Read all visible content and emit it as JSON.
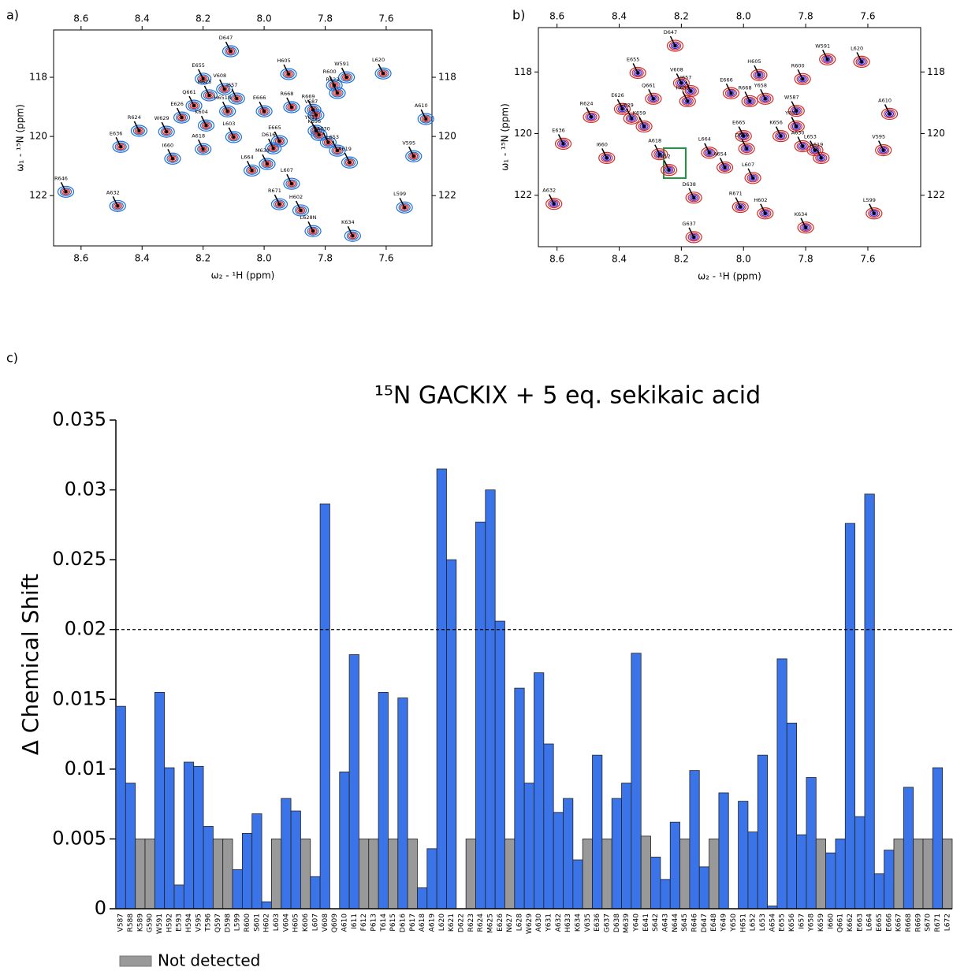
{
  "chart_data": [
    {
      "type": "scatter",
      "panel_label": "a)",
      "xlabel": "ω₂ - ¹H (ppm)",
      "ylabel": "ω₁ - ¹⁵N (ppm)",
      "xlim": [
        8.69,
        7.45
      ],
      "ylim": [
        116.4,
        123.7
      ],
      "xticks": [
        8.6,
        8.4,
        8.2,
        {
          "value": 8,
          "label": "8.0"
        },
        7.8,
        7.6
      ],
      "yticks": [
        118,
        120,
        122
      ],
      "contour_colors": [
        "#1f6fd6",
        "#d22b2b"
      ],
      "peaks": {
        "labels": [
          "D647",
          "E655",
          "H605",
          "W591",
          "L620",
          "V608",
          "M625",
          "I657",
          "Q661",
          "E626",
          "H651N",
          "R600",
          "R623",
          "E666",
          "R668",
          "R669",
          "V587",
          "W629",
          "R624",
          "E636",
          "K604",
          "L603",
          "E665",
          "Y631",
          "K656",
          "D616",
          "A630",
          "L653",
          "A619",
          "I660",
          "A618",
          "L664",
          "M639",
          "R646",
          "A632",
          "R671",
          "H602",
          "L607",
          "L628N",
          "K634",
          "L599",
          "V595",
          "A610"
        ],
        "x": [
          8.11,
          8.2,
          7.92,
          7.73,
          7.61,
          8.13,
          8.18,
          8.09,
          8.23,
          8.27,
          8.12,
          7.77,
          7.76,
          8.0,
          7.91,
          7.84,
          7.83,
          8.32,
          8.41,
          8.47,
          8.19,
          8.1,
          7.95,
          7.83,
          7.82,
          7.97,
          7.79,
          7.76,
          7.72,
          8.3,
          8.2,
          8.04,
          7.99,
          8.65,
          8.48,
          7.95,
          7.88,
          7.91,
          7.84,
          7.71,
          7.54,
          7.51,
          7.47
        ],
        "y": [
          117.12,
          118.05,
          117.89,
          118.0,
          117.87,
          118.4,
          118.61,
          118.72,
          118.96,
          119.36,
          119.15,
          118.27,
          118.53,
          119.15,
          119.01,
          119.1,
          119.28,
          119.84,
          119.81,
          120.35,
          119.63,
          120.02,
          120.16,
          119.81,
          119.95,
          120.4,
          120.2,
          120.48,
          120.88,
          120.75,
          120.43,
          121.15,
          120.93,
          121.87,
          122.35,
          122.29,
          122.5,
          121.6,
          123.2,
          123.36,
          122.4,
          120.67,
          119.41
        ],
        "label_colors": [
          "#000",
          "#000",
          "#000",
          "#000",
          "#1a9a3a",
          "#1a9a3a",
          "#1a9a3a",
          "#000",
          "#000",
          "#1a9a3a",
          "#000",
          "#000",
          "#1a9a3a",
          "#000",
          "#000",
          "#000",
          "#000",
          "#000",
          "#1a9a3a",
          "#000",
          "#000",
          "#1a9a3a",
          "#000",
          "#000",
          "#000",
          "#000",
          "#000",
          "#000",
          "#000",
          "#000",
          "#000",
          "#000",
          "#000",
          "#000",
          "#000",
          "#000",
          "#000",
          "#000",
          "#000",
          "#000",
          "#000",
          "#000",
          "#000"
        ]
      }
    },
    {
      "type": "scatter",
      "panel_label": "b)",
      "xlabel": "ω₂ - ¹H (ppm)",
      "ylabel": "ω₁ - ¹⁵N (ppm)",
      "xlim": [
        8.66,
        7.43
      ],
      "ylim": [
        116.56,
        123.67
      ],
      "xticks": [
        8.6,
        8.4,
        8.2,
        {
          "value": 8,
          "label": "8.0"
        },
        7.8,
        7.6
      ],
      "yticks": [
        118,
        120,
        122
      ],
      "contour_colors": [
        "#d22b2b",
        "#4b2bd0"
      ],
      "peaks": {
        "labels": [
          "D647",
          "E655",
          "V608",
          "I657",
          "H605",
          "W591",
          "L620",
          "R600",
          "E666",
          "Y658",
          "R668",
          "Q661",
          "E626",
          "H651",
          "R624",
          "V629",
          "K659",
          "E636",
          "I660",
          "A618",
          "F612",
          "L664",
          "E665",
          "D616",
          "K656",
          "Y631",
          "W587",
          "A630",
          "L653",
          "A619",
          "A654",
          "L607",
          "A610",
          "V595",
          "A632",
          "D638",
          "R671",
          "H602",
          "K634",
          "L599",
          "G637"
        ],
        "x": [
          8.22,
          8.34,
          8.2,
          8.17,
          7.95,
          7.73,
          7.62,
          7.81,
          8.04,
          7.93,
          7.98,
          8.29,
          8.39,
          8.18,
          8.49,
          8.36,
          8.32,
          8.58,
          8.44,
          8.27,
          8.24,
          8.11,
          8.0,
          7.99,
          7.88,
          7.83,
          7.83,
          7.81,
          7.77,
          7.75,
          8.06,
          7.97,
          7.53,
          7.55,
          8.61,
          8.16,
          8.01,
          7.93,
          7.8,
          7.58,
          8.16
        ],
        "y": [
          117.15,
          118.03,
          118.36,
          118.62,
          118.1,
          117.59,
          117.67,
          118.23,
          118.69,
          118.87,
          118.95,
          118.87,
          119.2,
          118.95,
          119.46,
          119.51,
          119.77,
          120.33,
          120.79,
          120.67,
          121.18,
          120.62,
          120.08,
          120.49,
          120.08,
          119.77,
          119.26,
          120.41,
          120.54,
          120.79,
          121.1,
          121.44,
          119.36,
          120.54,
          122.28,
          122.08,
          122.38,
          122.59,
          123.05,
          122.59,
          123.36
        ],
        "label_colors": [
          "#000",
          "#000",
          "#000",
          "#000",
          "#000",
          "#000",
          "#000",
          "#000",
          "#000",
          "#000",
          "#000",
          "#000",
          "#000",
          "#000",
          "#000",
          "#000",
          "#000",
          "#000",
          "#000",
          "#000",
          "#000",
          "#000",
          "#000",
          "#000",
          "#000",
          "#000",
          "#000",
          "#000",
          "#000",
          "#000",
          "#000",
          "#000",
          "#000",
          "#000",
          "#000",
          "#000",
          "#000",
          "#000",
          "#000",
          "#000",
          "#000"
        ]
      }
    },
    {
      "type": "bar",
      "panel_label": "c)",
      "title": "¹⁵N GACKIX + 5 eq. sekikaic acid",
      "ylabel": "Δ Chemical Shift",
      "ylim": [
        0,
        0.035
      ],
      "yticks": [
        0,
        0.005,
        0.01,
        0.015,
        0.02,
        0.025,
        0.03,
        0.035
      ],
      "threshold": 0.02,
      "categories": [
        "V587",
        "R588",
        "K589",
        "G590",
        "W591",
        "H592",
        "E593",
        "H594",
        "V595",
        "T596",
        "Q597",
        "D598",
        "L599",
        "R600",
        "S601",
        "H602",
        "L603",
        "V604",
        "H605",
        "K606",
        "L607",
        "V608",
        "Q609",
        "A610",
        "I611",
        "F612",
        "P613",
        "T614",
        "P615",
        "D616",
        "P617",
        "A618",
        "A619",
        "L620",
        "K621",
        "D622",
        "R623",
        "R624",
        "M625",
        "E626",
        "N627",
        "L628",
        "W629",
        "A630",
        "Y631",
        "A632",
        "H633",
        "K634",
        "V635",
        "E636",
        "G637",
        "D638",
        "M639",
        "Y640",
        "E641",
        "S642",
        "A643",
        "N644",
        "S645",
        "R646",
        "D647",
        "E648",
        "Y649",
        "Y650",
        "H651",
        "L652",
        "L653",
        "A654",
        "E655",
        "K656",
        "I657",
        "Y658",
        "K659",
        "I660",
        "Q661",
        "K662",
        "E663",
        "L664",
        "E665",
        "E666",
        "K667",
        "R668",
        "R669",
        "S670",
        "R671",
        "L672"
      ],
      "values": [
        0.0145,
        0.009,
        0.005,
        0.005,
        0.0155,
        0.0101,
        0.0017,
        0.0105,
        0.0102,
        0.0059,
        0.005,
        0.005,
        0.0028,
        0.0054,
        0.0068,
        0.0005,
        0.005,
        0.0079,
        0.007,
        0.005,
        0.0023,
        0.029,
        null,
        0.0098,
        0.0182,
        0.005,
        0.005,
        0.0155,
        0.005,
        0.0151,
        0.005,
        0.0015,
        0.0043,
        0.0315,
        0.025,
        null,
        0.005,
        0.0277,
        0.03,
        0.0206,
        0.005,
        0.0158,
        0.009,
        0.0169,
        0.0118,
        0.0069,
        0.0079,
        0.0035,
        0.005,
        0.011,
        0.005,
        0.0079,
        0.009,
        0.0183,
        0.0052,
        0.0037,
        0.0021,
        0.0062,
        0.005,
        0.0099,
        0.003,
        0.005,
        0.0083,
        null,
        0.0077,
        0.0055,
        0.011,
        0.0002,
        0.0179,
        0.0133,
        0.0053,
        0.0094,
        0.005,
        0.004,
        0.005,
        0.0276,
        0.0066,
        0.0297,
        0.0025,
        0.0042,
        0.005,
        0.0087,
        0.005,
        0.005,
        0.0101,
        0.005
      ],
      "colors": [
        "#3a74e8",
        "#3a74e8",
        "#999999",
        "#999999",
        "#3a74e8",
        "#3a74e8",
        "#3a74e8",
        "#3a74e8",
        "#3a74e8",
        "#3a74e8",
        "#999999",
        "#999999",
        "#3a74e8",
        "#3a74e8",
        "#3a74e8",
        "#3a74e8",
        "#999999",
        "#3a74e8",
        "#3a74e8",
        "#999999",
        "#3a74e8",
        "#3a74e8",
        null,
        "#3a74e8",
        "#3a74e8",
        "#999999",
        "#999999",
        "#3a74e8",
        "#999999",
        "#3a74e8",
        "#999999",
        "#3a74e8",
        "#3a74e8",
        "#3a74e8",
        "#3a74e8",
        null,
        "#999999",
        "#3a74e8",
        "#3a74e8",
        "#3a74e8",
        "#999999",
        "#3a74e8",
        "#3a74e8",
        "#3a74e8",
        "#3a74e8",
        "#3a74e8",
        "#3a74e8",
        "#3a74e8",
        "#999999",
        "#3a74e8",
        "#999999",
        "#3a74e8",
        "#3a74e8",
        "#3a74e8",
        "#999999",
        "#3a74e8",
        "#3a74e8",
        "#3a74e8",
        "#999999",
        "#3a74e8",
        "#3a74e8",
        "#999999",
        "#3a74e8",
        null,
        "#3a74e8",
        "#3a74e8",
        "#3a74e8",
        "#3a74e8",
        "#3a74e8",
        "#3a74e8",
        "#3a74e8",
        "#3a74e8",
        "#999999",
        "#3a74e8",
        "#3a74e8",
        "#3a74e8",
        "#3a74e8",
        "#3a74e8",
        "#3a74e8",
        "#3a74e8",
        "#999999",
        "#3a74e8",
        "#999999",
        "#999999",
        "#3a74e8",
        "#999999"
      ],
      "legend": {
        "label": "Not detected",
        "color": "#999999"
      }
    }
  ]
}
